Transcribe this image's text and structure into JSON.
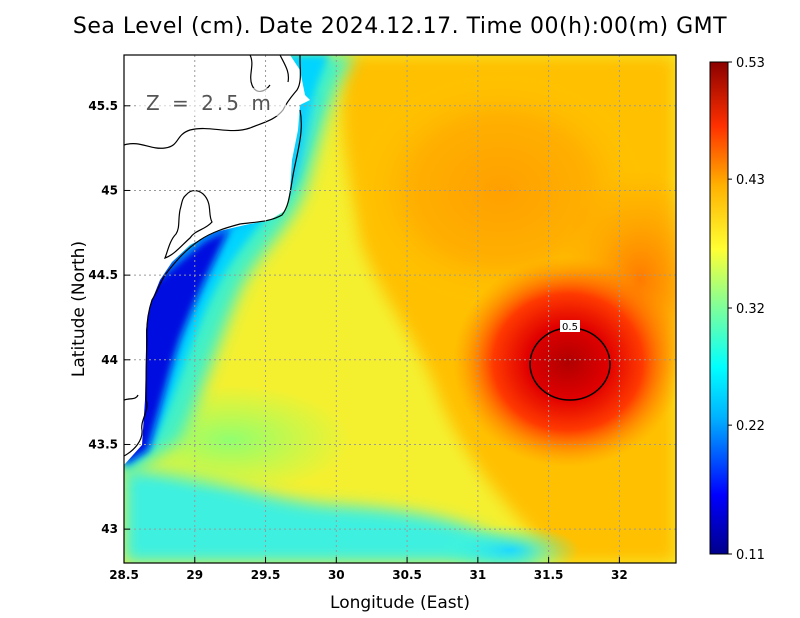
{
  "title": "Sea Level (cm). Date 2024.12.17. Time 00(h):00(m) GMT",
  "annotation": "Z = 2.5 m",
  "contour_label": "0.5",
  "chart_data": {
    "type": "heatmap",
    "title": "Sea Level (cm). Date 2024.12.17. Time 00(h):00(m) GMT",
    "xlabel": "Longitude (East)",
    "ylabel": "Latitude (North)",
    "xlim": [
      28.5,
      32.4
    ],
    "ylim": [
      42.8,
      45.8
    ],
    "xticks": [
      "28.5",
      "29",
      "29.5",
      "30",
      "30.5",
      "31",
      "31.5",
      "32"
    ],
    "yticks": [
      "43",
      "43.5",
      "44",
      "44.5",
      "45",
      "45.5"
    ],
    "colorbar": {
      "min": 0.11,
      "max": 0.53,
      "ticks": [
        "0.53",
        "0.43",
        "0.32",
        "0.22",
        "0.11"
      ]
    },
    "grid": true,
    "features": [
      {
        "name": "maximum",
        "lon": 31.65,
        "lat": 43.95,
        "value": 0.53
      },
      {
        "name": "contour",
        "level": 0.5
      }
    ],
    "colors": {
      "low": "#0000aa",
      "mid": "#ffff33",
      "high": "#8b0000"
    }
  }
}
